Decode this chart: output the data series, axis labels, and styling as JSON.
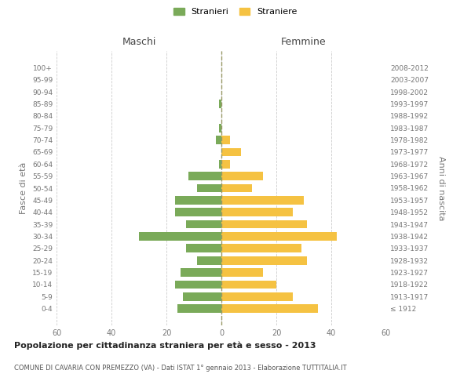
{
  "age_groups": [
    "100+",
    "95-99",
    "90-94",
    "85-89",
    "80-84",
    "75-79",
    "70-74",
    "65-69",
    "60-64",
    "55-59",
    "50-54",
    "45-49",
    "40-44",
    "35-39",
    "30-34",
    "25-29",
    "20-24",
    "15-19",
    "10-14",
    "5-9",
    "0-4"
  ],
  "birth_years": [
    "≤ 1912",
    "1913-1917",
    "1918-1922",
    "1923-1927",
    "1928-1932",
    "1933-1937",
    "1938-1942",
    "1943-1947",
    "1948-1952",
    "1953-1957",
    "1958-1962",
    "1963-1967",
    "1968-1972",
    "1973-1977",
    "1978-1982",
    "1983-1987",
    "1988-1992",
    "1993-1997",
    "1998-2002",
    "2003-2007",
    "2008-2012"
  ],
  "males": [
    0,
    0,
    0,
    1,
    0,
    1,
    2,
    0,
    1,
    12,
    9,
    17,
    17,
    13,
    30,
    13,
    9,
    15,
    17,
    14,
    16
  ],
  "females": [
    0,
    0,
    0,
    0,
    0,
    0,
    3,
    7,
    3,
    15,
    11,
    30,
    26,
    31,
    42,
    29,
    31,
    15,
    20,
    26,
    35
  ],
  "male_color": "#7aaa59",
  "female_color": "#f5c242",
  "title_main": "Popolazione per cittadinanza straniera per età e sesso - 2013",
  "title_sub": "COMUNE DI CAVARIA CON PREMEZZO (VA) - Dati ISTAT 1° gennaio 2013 - Elaborazione TUTTITALIA.IT",
  "legend_male": "Stranieri",
  "legend_female": "Straniere",
  "xlabel_left": "Maschi",
  "xlabel_right": "Femmine",
  "ylabel_left": "Fasce di età",
  "ylabel_right": "Anni di nascita",
  "xlim": 60,
  "bg_color": "#ffffff",
  "grid_color": "#cccccc",
  "bar_height": 0.7,
  "dashed_line_color": "#999966"
}
